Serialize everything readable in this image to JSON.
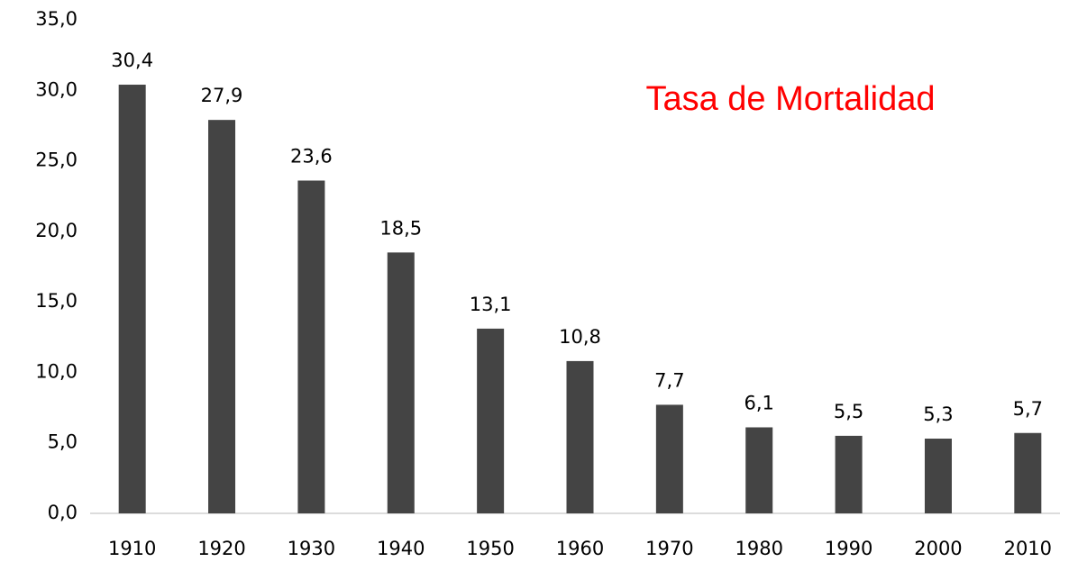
{
  "chart_data": {
    "type": "bar",
    "title": "Tasa de Mortalidad",
    "categories": [
      "1910",
      "1920",
      "1930",
      "1940",
      "1950",
      "1960",
      "1970",
      "1980",
      "1990",
      "2000",
      "2010"
    ],
    "values": [
      30.4,
      27.9,
      23.6,
      18.5,
      13.1,
      10.8,
      7.7,
      6.1,
      5.5,
      5.3,
      5.7
    ],
    "value_labels": [
      "30,4",
      "27,9",
      "23,6",
      "18,5",
      "13,1",
      "10,8",
      "7,7",
      "6,1",
      "5,5",
      "5,3",
      "5,7"
    ],
    "color": "#444444",
    "title_color": "#ff0000",
    "ylim": [
      0,
      35
    ],
    "yticks": [
      {
        "value": 0,
        "label": "0,0"
      },
      {
        "value": 5,
        "label": "5,0"
      },
      {
        "value": 10,
        "label": "10,0"
      },
      {
        "value": 15,
        "label": "15,0"
      },
      {
        "value": 20,
        "label": "20,0"
      },
      {
        "value": 25,
        "label": "25,0"
      },
      {
        "value": 30,
        "label": "30,0"
      },
      {
        "value": 35,
        "label": "35,0"
      }
    ],
    "grid": false
  }
}
